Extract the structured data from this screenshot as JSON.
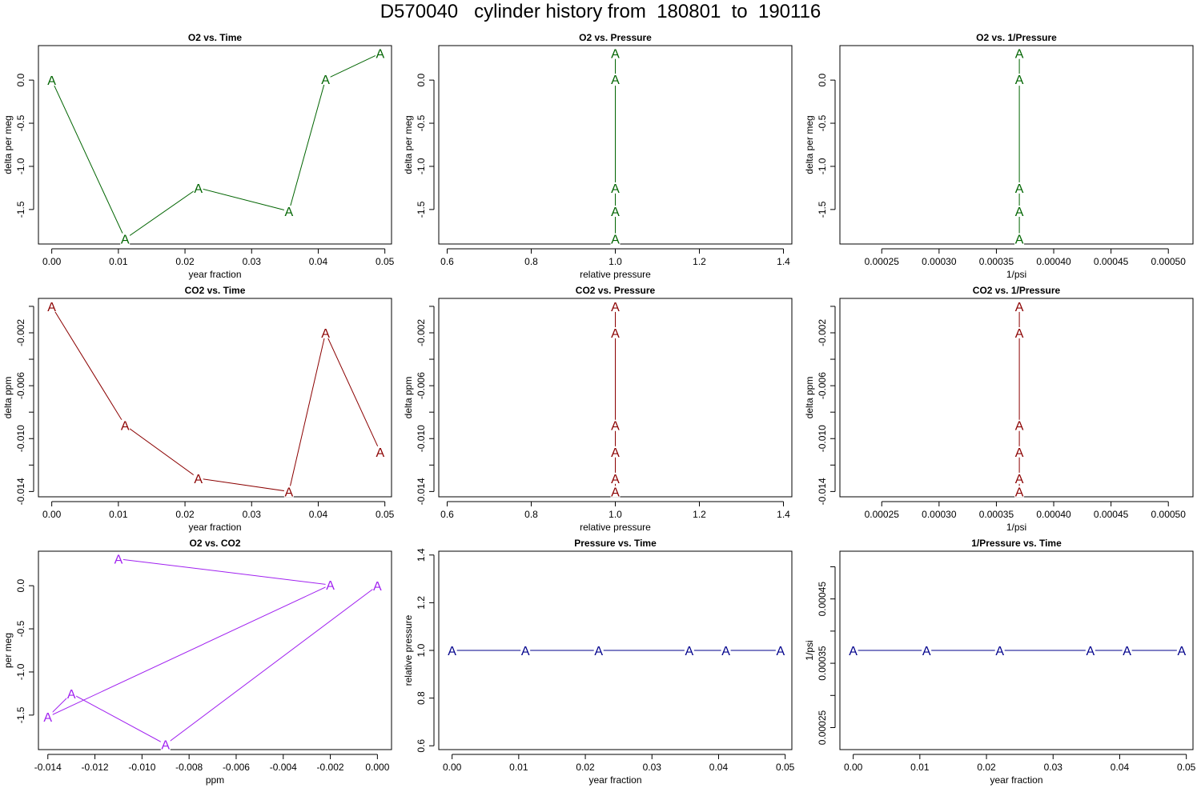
{
  "figure": {
    "title": "D570040   cylinder history from  180801  to  190116"
  },
  "chart_data": [
    {
      "type": "line",
      "title": "O2 vs. Time",
      "xlabel": "year fraction",
      "ylabel": "delta per meg",
      "color": "#006400",
      "marker": "A",
      "xlim": [
        -0.002,
        0.051
      ],
      "ylim": [
        -1.9,
        0.4
      ],
      "xticks": [
        0.0,
        0.01,
        0.02,
        0.03,
        0.04,
        0.05
      ],
      "xtick_labels": [
        "0.00",
        "0.01",
        "0.02",
        "0.03",
        "0.04",
        "0.05"
      ],
      "yticks": [
        0.0,
        -0.5,
        -1.0,
        -1.5
      ],
      "ytick_labels": [
        "0.0",
        "-0.5",
        "-1.0",
        "-1.5"
      ],
      "x": [
        0.0,
        0.011,
        0.022,
        0.0356,
        0.0411,
        0.0493
      ],
      "y": [
        0.0,
        -1.84,
        -1.25,
        -1.52,
        0.01,
        0.31
      ]
    },
    {
      "type": "line",
      "title": "O2 vs. Pressure",
      "xlabel": "relative pressure",
      "ylabel": "delta per meg",
      "color": "#006400",
      "marker": "A",
      "xlim": [
        0.58,
        1.42
      ],
      "ylim": [
        -1.9,
        0.4
      ],
      "xticks": [
        0.6,
        0.8,
        1.0,
        1.2,
        1.4
      ],
      "xtick_labels": [
        "0.6",
        "0.8",
        "1.0",
        "1.2",
        "1.4"
      ],
      "yticks": [
        0.0,
        -0.5,
        -1.0,
        -1.5
      ],
      "ytick_labels": [
        "0.0",
        "-0.5",
        "-1.0",
        "-1.5"
      ],
      "x": [
        1.0,
        1.0,
        1.0,
        1.0,
        1.0,
        1.0
      ],
      "y": [
        0.0,
        -1.84,
        -1.25,
        -1.52,
        0.01,
        0.31
      ]
    },
    {
      "type": "line",
      "title": "O2 vs. 1/Pressure",
      "xlabel": "1/psi",
      "ylabel": "delta per meg",
      "color": "#006400",
      "marker": "A",
      "xlim": [
        0.0002135,
        0.0005215
      ],
      "ylim": [
        -1.9,
        0.4
      ],
      "xticks": [
        0.00025,
        0.0003,
        0.00035,
        0.0004,
        0.00045,
        0.0005
      ],
      "xtick_labels": [
        "0.00025",
        "0.00030",
        "0.00035",
        "0.00040",
        "0.00045",
        "0.00050"
      ],
      "yticks": [
        0.0,
        -0.5,
        -1.0,
        -1.5
      ],
      "ytick_labels": [
        "0.0",
        "-0.5",
        "-1.0",
        "-1.5"
      ],
      "x": [
        0.00037,
        0.00037,
        0.00037,
        0.00037,
        0.00037,
        0.00037
      ],
      "y": [
        0.0,
        -1.84,
        -1.25,
        -1.52,
        0.01,
        0.31
      ]
    },
    {
      "type": "line",
      "title": "CO2 vs. Time",
      "xlabel": "year fraction",
      "ylabel": "delta ppm",
      "color": "#8b0000",
      "marker": "A",
      "xlim": [
        -0.002,
        0.051
      ],
      "ylim": [
        -0.0144,
        0.0006
      ],
      "xticks": [
        0.0,
        0.01,
        0.02,
        0.03,
        0.04,
        0.05
      ],
      "xtick_labels": [
        "0.00",
        "0.01",
        "0.02",
        "0.03",
        "0.04",
        "0.05"
      ],
      "yticks": [
        -0.002,
        -0.006,
        -0.01,
        -0.014
      ],
      "ytick_labels": [
        "-0.002",
        "-0.006",
        "-0.010",
        "-0.014"
      ],
      "yticks_minor": [
        0.0,
        -0.004,
        -0.008,
        -0.012
      ],
      "x": [
        0.0,
        0.011,
        0.022,
        0.0356,
        0.0411,
        0.0493
      ],
      "y": [
        0.0,
        -0.009,
        -0.013,
        -0.014,
        -0.002,
        -0.011
      ]
    },
    {
      "type": "line",
      "title": "CO2 vs. Pressure",
      "xlabel": "relative pressure",
      "ylabel": "delta ppm",
      "color": "#8b0000",
      "marker": "A",
      "xlim": [
        0.58,
        1.42
      ],
      "ylim": [
        -0.0144,
        0.0006
      ],
      "xticks": [
        0.6,
        0.8,
        1.0,
        1.2,
        1.4
      ],
      "xtick_labels": [
        "0.6",
        "0.8",
        "1.0",
        "1.2",
        "1.4"
      ],
      "yticks": [
        -0.002,
        -0.006,
        -0.01,
        -0.014
      ],
      "ytick_labels": [
        "-0.002",
        "-0.006",
        "-0.010",
        "-0.014"
      ],
      "yticks_minor": [
        0.0,
        -0.004,
        -0.008,
        -0.012
      ],
      "x": [
        1.0,
        1.0,
        1.0,
        1.0,
        1.0,
        1.0
      ],
      "y": [
        0.0,
        -0.009,
        -0.013,
        -0.014,
        -0.002,
        -0.011
      ]
    },
    {
      "type": "line",
      "title": "CO2 vs. 1/Pressure",
      "xlabel": "1/psi",
      "ylabel": "delta ppm",
      "color": "#8b0000",
      "marker": "A",
      "xlim": [
        0.0002135,
        0.0005215
      ],
      "ylim": [
        -0.0144,
        0.0006
      ],
      "xticks": [
        0.00025,
        0.0003,
        0.00035,
        0.0004,
        0.00045,
        0.0005
      ],
      "xtick_labels": [
        "0.00025",
        "0.00030",
        "0.00035",
        "0.00040",
        "0.00045",
        "0.00050"
      ],
      "yticks": [
        -0.002,
        -0.006,
        -0.01,
        -0.014
      ],
      "ytick_labels": [
        "-0.002",
        "-0.006",
        "-0.010",
        "-0.014"
      ],
      "yticks_minor": [
        0.0,
        -0.004,
        -0.008,
        -0.012
      ],
      "x": [
        0.00037,
        0.00037,
        0.00037,
        0.00037,
        0.00037,
        0.00037
      ],
      "y": [
        0.0,
        -0.009,
        -0.013,
        -0.014,
        -0.002,
        -0.011
      ]
    },
    {
      "type": "line",
      "title": "O2 vs. CO2",
      "xlabel": "ppm",
      "ylabel": "per meg",
      "color": "#a020f0",
      "marker": "A",
      "xlim": [
        -0.0144,
        0.0006
      ],
      "ylim": [
        -1.9,
        0.4
      ],
      "xticks": [
        -0.014,
        -0.012,
        -0.01,
        -0.008,
        -0.006,
        -0.004,
        -0.002,
        0.0
      ],
      "xtick_labels": [
        "-0.014",
        "-0.012",
        "-0.010",
        "-0.008",
        "-0.006",
        "-0.004",
        "-0.002",
        "0.000"
      ],
      "yticks": [
        0.0,
        -0.5,
        -1.0,
        -1.5
      ],
      "ytick_labels": [
        "0.0",
        "-0.5",
        "-1.0",
        "-1.5"
      ],
      "x": [
        0.0,
        -0.009,
        -0.013,
        -0.014,
        -0.002,
        -0.011
      ],
      "y": [
        0.0,
        -1.84,
        -1.25,
        -1.52,
        0.01,
        0.31
      ]
    },
    {
      "type": "line",
      "title": "Pressure vs. Time",
      "xlabel": "year fraction",
      "ylabel": "relative pressure",
      "color": "#00008b",
      "marker": "A",
      "xlim": [
        -0.002,
        0.051
      ],
      "ylim": [
        0.584,
        1.416
      ],
      "xticks": [
        0.0,
        0.01,
        0.02,
        0.03,
        0.04,
        0.05
      ],
      "xtick_labels": [
        "0.00",
        "0.01",
        "0.02",
        "0.03",
        "0.04",
        "0.05"
      ],
      "yticks": [
        0.6,
        0.8,
        1.0,
        1.2,
        1.4
      ],
      "ytick_labels": [
        "0.6",
        "0.8",
        "1.0",
        "1.2",
        "1.4"
      ],
      "x": [
        0.0,
        0.011,
        0.022,
        0.0356,
        0.0411,
        0.0493
      ],
      "y": [
        1.0,
        1.0,
        1.0,
        1.0,
        1.0,
        1.0
      ]
    },
    {
      "type": "line",
      "title": "1/Pressure vs. Time",
      "xlabel": "year fraction",
      "ylabel": "1/psi",
      "color": "#00008b",
      "marker": "A",
      "xlim": [
        -0.002,
        0.051
      ],
      "ylim": [
        0.0002158,
        0.0005242
      ],
      "xticks": [
        0.0,
        0.01,
        0.02,
        0.03,
        0.04,
        0.05
      ],
      "xtick_labels": [
        "0.00",
        "0.01",
        "0.02",
        "0.03",
        "0.04",
        "0.05"
      ],
      "yticks": [
        0.00025,
        0.00035,
        0.00045
      ],
      "ytick_labels": [
        "0.00025",
        "0.00035",
        "0.00045"
      ],
      "yticks_minor": [
        0.0003,
        0.0004,
        0.0005
      ],
      "x": [
        0.0,
        0.011,
        0.022,
        0.0356,
        0.0411,
        0.0493
      ],
      "y": [
        0.00037,
        0.00037,
        0.00037,
        0.00037,
        0.00037,
        0.00037
      ]
    }
  ]
}
